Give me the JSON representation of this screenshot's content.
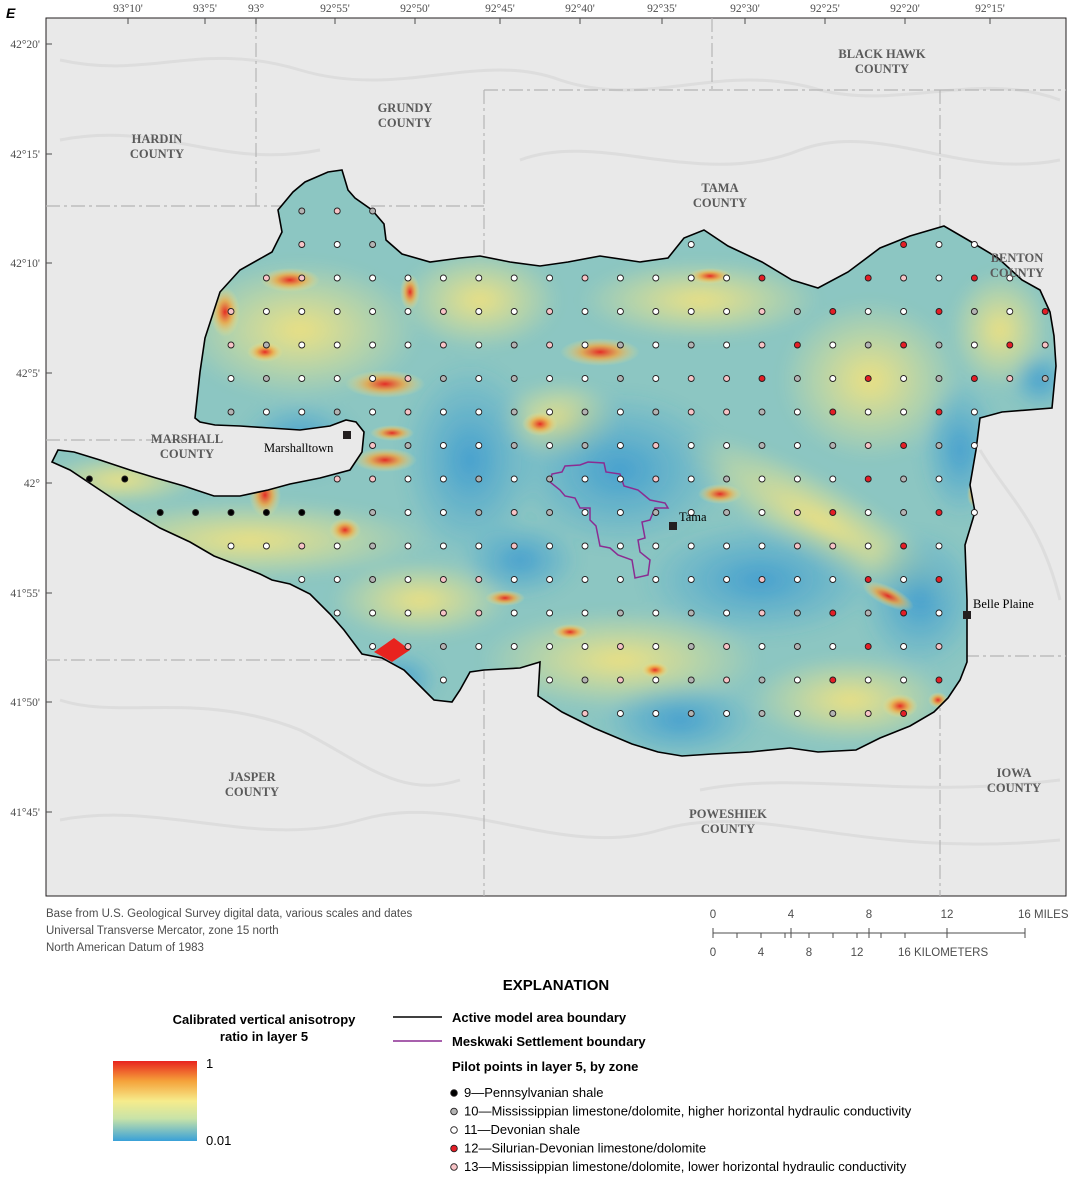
{
  "figure_letter": "E",
  "longitudes": [
    "93°10'",
    "93°5'",
    "93°",
    "92°55'",
    "92°50'",
    "92°45'",
    "92°40'",
    "92°35'",
    "92°30'",
    "92°25'",
    "92°20'",
    "92°15'"
  ],
  "latitudes": [
    "42°20'",
    "42°15'",
    "42°10'",
    "42°5'",
    "42°",
    "41°55'",
    "41°50'",
    "41°45'"
  ],
  "counties": [
    {
      "id": "black-hawk",
      "line1": "BLACK HAWK",
      "line2": "COUNTY"
    },
    {
      "id": "grundy",
      "line1": "GRUNDY",
      "line2": "COUNTY"
    },
    {
      "id": "hardin",
      "line1": "HARDIN",
      "line2": "COUNTY"
    },
    {
      "id": "tama",
      "line1": "TAMA",
      "line2": "COUNTY"
    },
    {
      "id": "benton",
      "line1": "BENTON",
      "line2": "COUNTY"
    },
    {
      "id": "marshall",
      "line1": "MARSHALL",
      "line2": "COUNTY"
    },
    {
      "id": "jasper",
      "line1": "JASPER",
      "line2": "COUNTY"
    },
    {
      "id": "poweshiek",
      "line1": "POWESHIEK",
      "line2": "COUNTY"
    },
    {
      "id": "iowa",
      "line1": "IOWA",
      "line2": "COUNTY"
    }
  ],
  "towns": {
    "marshalltown": "Marshalltown",
    "tama": "Tama",
    "belle_plaine": "Belle Plaine"
  },
  "base_note": {
    "line1": "Base from U.S. Geological Survey digital data, various scales and dates",
    "line2": "Universal Transverse Mercator, zone 15 north",
    "line3": "North American Datum of 1983"
  },
  "scale_bar": {
    "miles_ticks": [
      "0",
      "4",
      "8",
      "12",
      "16 MILES"
    ],
    "km_ticks": [
      "0",
      "4",
      "8",
      "12",
      "16 KILOMETERS"
    ]
  },
  "explanation": {
    "heading": "EXPLANATION",
    "ramp_title_line1": "Calibrated vertical anisotropy",
    "ramp_title_line2": "ratio in layer 5",
    "ramp_max": "1",
    "ramp_min": "0.01",
    "ramp_colors": [
      "#e8231e",
      "#f5a23a",
      "#f6ec8c",
      "#c8e3a8",
      "#39a0d8"
    ],
    "active_boundary": "Active model area boundary",
    "meskwaki_boundary": "Meskwaki Settlement boundary",
    "pilot_heading": "Pilot points in layer 5, by zone",
    "zones": [
      {
        "label": "9—Pennsylvanian shale",
        "color": "#000000"
      },
      {
        "label": "10—Mississippian limestone/dolomite, higher horizontal hydraulic conductivity",
        "color": "#b3b3b3"
      },
      {
        "label": "11—Devonian shale",
        "color": "#ffffff"
      },
      {
        "label": "12—Silurian-Devonian limestone/dolomite",
        "color": "#e41e26"
      },
      {
        "label": "13—Mississippian limestone/dolomite, lower horizontal hydraulic conductivity",
        "color": "#f7c3c6"
      }
    ]
  }
}
